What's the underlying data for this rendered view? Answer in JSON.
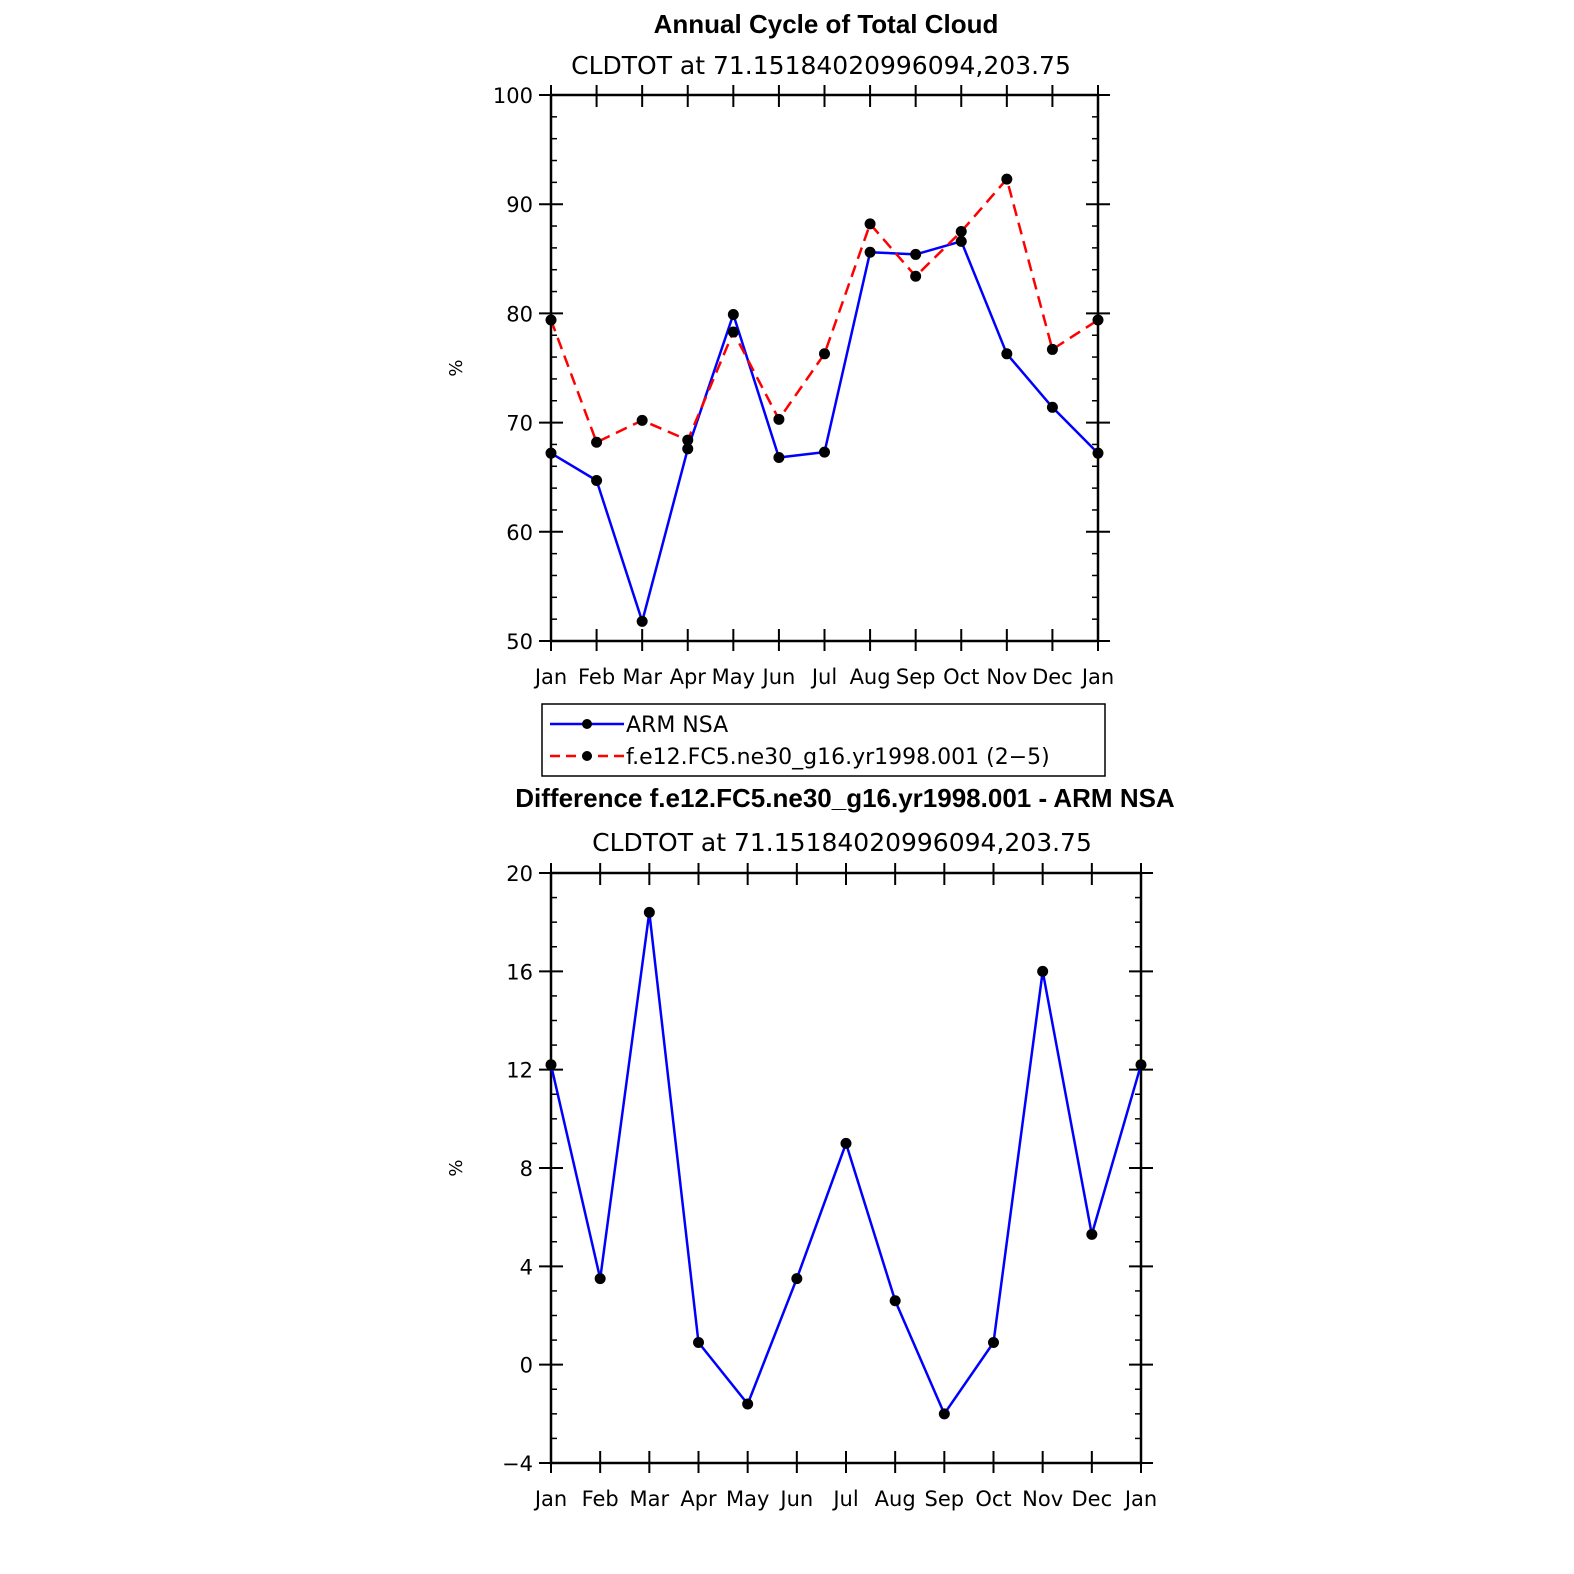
{
  "colors": {
    "arm": "#0000ff",
    "model": "#ff0000",
    "marker": "#000000",
    "axis": "#000000"
  },
  "legend": {
    "entries": [
      {
        "label": "ARM NSA",
        "color": "#0000ff",
        "dash": false
      },
      {
        "label": "f.e12.FC5.ne30_g16.yr1998.001 (2−5)",
        "color": "#ff0000",
        "dash": true
      }
    ]
  },
  "chart_data": [
    {
      "type": "line",
      "title": "Annual Cycle of Total Cloud",
      "subtitle": "CLDTOT at 71.15184020996094,203.75",
      "ylabel": "%",
      "ylim": [
        50,
        100
      ],
      "yticks": [
        "50",
        "60",
        "70",
        "80",
        "90",
        "100"
      ],
      "categories": [
        "Jan",
        "Feb",
        "Mar",
        "Apr",
        "May",
        "Jun",
        "Jul",
        "Aug",
        "Sep",
        "Oct",
        "Nov",
        "Dec",
        "Jan"
      ],
      "series": [
        {
          "name": "ARM NSA",
          "color": "#0000ff",
          "dash": false,
          "values": [
            67.2,
            64.7,
            51.8,
            67.6,
            79.9,
            66.8,
            67.3,
            85.6,
            85.4,
            86.6,
            76.3,
            71.4,
            67.2
          ]
        },
        {
          "name": "f.e12.FC5.ne30_g16.yr1998.001 (2−5)",
          "color": "#ff0000",
          "dash": true,
          "values": [
            79.4,
            68.2,
            70.2,
            68.4,
            78.3,
            70.3,
            76.3,
            88.2,
            83.4,
            87.5,
            92.3,
            76.7,
            79.4
          ]
        }
      ],
      "grid": false
    },
    {
      "type": "line",
      "title": "Difference f.e12.FC5.ne30_g16.yr1998.001 - ARM NSA",
      "subtitle": "CLDTOT at 71.15184020996094,203.75",
      "ylabel": "%",
      "ylim": [
        -4,
        20
      ],
      "yticks": [
        "−4",
        "0",
        "4",
        "8",
        "12",
        "16",
        "20"
      ],
      "categories": [
        "Jan",
        "Feb",
        "Mar",
        "Apr",
        "May",
        "Jun",
        "Jul",
        "Aug",
        "Sep",
        "Oct",
        "Nov",
        "Dec",
        "Jan"
      ],
      "series": [
        {
          "color": "#0000ff",
          "dash": false,
          "values": [
            12.2,
            3.5,
            18.4,
            0.9,
            -1.6,
            3.5,
            9.0,
            2.6,
            -2.0,
            0.9,
            16.0,
            5.3,
            12.2
          ]
        }
      ],
      "grid": false
    }
  ]
}
